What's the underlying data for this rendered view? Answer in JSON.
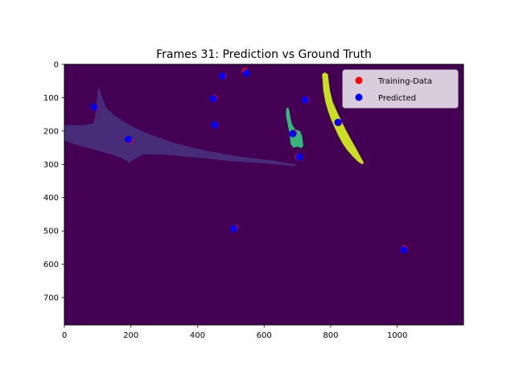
{
  "chart_data": {
    "type": "scatter",
    "title": "Frames 31: Prediction vs Ground Truth",
    "xlabel": "",
    "ylabel": "",
    "xlim": [
      0,
      1199
    ],
    "ylim": [
      782,
      0
    ],
    "xticks": [
      "0",
      "200",
      "400",
      "600",
      "800",
      "1000"
    ],
    "yticks": [
      "0",
      "100",
      "200",
      "300",
      "400",
      "500",
      "600",
      "700"
    ],
    "background": {
      "type": "segmentation-mask",
      "colors": {
        "background": "#440154",
        "region_a": "#472c7a",
        "region_b": "#482979",
        "region_c": "#35b779",
        "region_d": "#c8e020"
      }
    },
    "legend": {
      "position": "top-right",
      "entries": [
        {
          "label": "Training-Data",
          "color": "#ff0000"
        },
        {
          "label": "Predicted",
          "color": "#0000ff"
        }
      ]
    },
    "series": [
      {
        "name": "Training-Data",
        "color": "#ff0000",
        "points": [
          {
            "x": 92,
            "y": 128
          },
          {
            "x": 195,
            "y": 227
          },
          {
            "x": 478,
            "y": 35
          },
          {
            "x": 543,
            "y": 22
          },
          {
            "x": 450,
            "y": 102
          },
          {
            "x": 453,
            "y": 182
          },
          {
            "x": 726,
            "y": 107
          },
          {
            "x": 688,
            "y": 207
          },
          {
            "x": 704,
            "y": 278
          },
          {
            "x": 823,
            "y": 175
          },
          {
            "x": 512,
            "y": 492
          },
          {
            "x": 1021,
            "y": 554
          }
        ]
      },
      {
        "name": "Predicted",
        "color": "#0000ff",
        "points": [
          {
            "x": 90,
            "y": 128
          },
          {
            "x": 193,
            "y": 225
          },
          {
            "x": 476,
            "y": 35
          },
          {
            "x": 546,
            "y": 26
          },
          {
            "x": 448,
            "y": 103
          },
          {
            "x": 452,
            "y": 182
          },
          {
            "x": 724,
            "y": 107
          },
          {
            "x": 686,
            "y": 208
          },
          {
            "x": 706,
            "y": 278
          },
          {
            "x": 822,
            "y": 174
          },
          {
            "x": 510,
            "y": 493
          },
          {
            "x": 1020,
            "y": 556
          }
        ]
      }
    ]
  }
}
